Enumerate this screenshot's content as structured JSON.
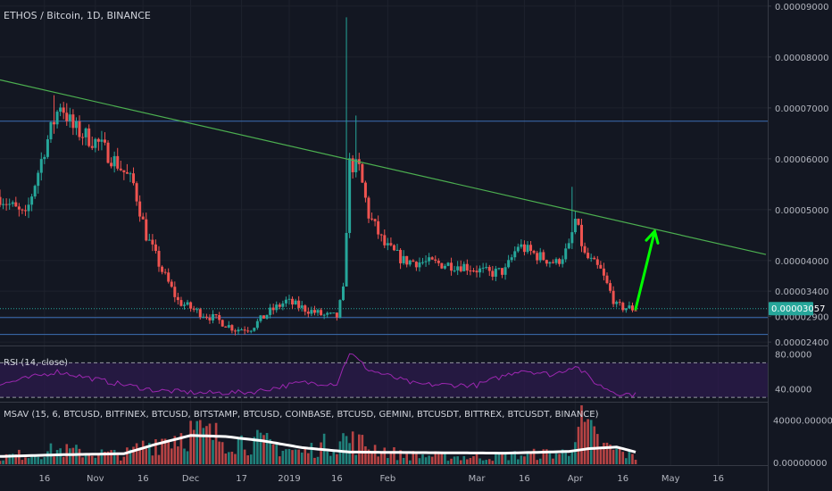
{
  "header": {
    "title": "ETHOS / Bitcoin, 1D, BINANCE",
    "rsi_label": "RSI (14, close)",
    "msav_label": "MSAV (15, 6, BTCUSD, BITFINEX, BTCUSD, BITSTAMP, BTCUSD, COINBASE, BTCUSD, GEMINI, BTCUSDT, BITTREX, BTCUSDT, BINANCE)"
  },
  "colors": {
    "background": "#131722",
    "up": "#26a69a",
    "down": "#ef5350",
    "trendline": "#4caf50",
    "arrow": "#00ff00",
    "rsi_line": "#9c27b0",
    "rsi_band": "#2a1a4a",
    "hline": "#3d6fb5",
    "last_price_bg": "#26a69a",
    "volume_ma": "#ffffff"
  },
  "chart_data": [
    {
      "type": "candlestick",
      "title": "ETHOS / Bitcoin, 1D, BINANCE",
      "x_ticks": [
        "16",
        "Nov",
        "16",
        "Dec",
        "17",
        "2019",
        "16",
        "Feb",
        "Mar",
        "16",
        "Apr",
        "16",
        "May",
        "16"
      ],
      "y_ticks": [
        "0.00009000",
        "0.00008000",
        "0.00007000",
        "0.00006000",
        "0.00005000",
        "0.00004000",
        "0.00003400",
        "0.00002900",
        "0.00002400"
      ],
      "last_price": "0.00003057",
      "last_price_value": 3.057e-05,
      "ylim": [
        2.35e-05,
        9.12e-05
      ],
      "date_range": [
        "2018-10-02",
        "2019-05-31"
      ],
      "horizontal_lines": [
        6.74e-05,
        2.88e-05,
        2.55e-05
      ],
      "trendline": [
        {
          "date": "2018-10-02",
          "value": 7.55e-05
        },
        {
          "date": "2019-05-31",
          "value": 4.12e-05
        }
      ],
      "arrow": [
        {
          "date": "2019-04-20",
          "value": 3.05e-05
        },
        {
          "date": "2019-04-26",
          "value": 4.58e-05
        }
      ],
      "anchors": [
        [
          "2018-10-02",
          5.25e-05
        ],
        [
          "2018-10-10",
          4.85e-05
        ],
        [
          "2018-10-16",
          6.2e-05
        ],
        [
          "2018-10-21",
          7.1e-05
        ],
        [
          "2018-10-25",
          6.6e-05
        ],
        [
          "2018-11-02",
          6.3e-05
        ],
        [
          "2018-11-08",
          5.9e-05
        ],
        [
          "2018-11-13",
          5.5e-05
        ],
        [
          "2018-11-17",
          4.5e-05
        ],
        [
          "2018-11-22",
          3.8e-05
        ],
        [
          "2018-11-27",
          3.2e-05
        ],
        [
          "2018-12-03",
          3e-05
        ],
        [
          "2018-12-09",
          2.85e-05
        ],
        [
          "2018-12-15",
          2.65e-05
        ],
        [
          "2018-12-20",
          2.68e-05
        ],
        [
          "2018-12-26",
          3e-05
        ],
        [
          "2018-12-31",
          3.2e-05
        ],
        [
          "2019-01-06",
          3.05e-05
        ],
        [
          "2019-01-12",
          2.92e-05
        ],
        [
          "2019-01-16",
          2.9e-05
        ],
        [
          "2019-01-18",
          3.4e-05
        ],
        [
          "2019-01-20",
          5.9e-05
        ],
        [
          "2019-01-23",
          5.8e-05
        ],
        [
          "2019-01-26",
          4.9e-05
        ],
        [
          "2019-01-31",
          4.3e-05
        ],
        [
          "2019-02-06",
          4e-05
        ],
        [
          "2019-02-15",
          3.95e-05
        ],
        [
          "2019-02-25",
          3.9e-05
        ],
        [
          "2019-03-05",
          3.75e-05
        ],
        [
          "2019-03-10",
          3.8e-05
        ],
        [
          "2019-03-14",
          4.3e-05
        ],
        [
          "2019-03-20",
          4.1e-05
        ],
        [
          "2019-03-26",
          3.95e-05
        ],
        [
          "2019-03-30",
          4.25e-05
        ],
        [
          "2019-04-01",
          4.8e-05
        ],
        [
          "2019-04-04",
          4.1e-05
        ],
        [
          "2019-04-09",
          3.8e-05
        ],
        [
          "2019-04-14",
          3.1e-05
        ],
        [
          "2019-04-20",
          3.05e-05
        ]
      ],
      "spikes": [
        {
          "date": "2018-10-19",
          "high": 7.25e-05
        },
        {
          "date": "2019-01-19",
          "high": 8.78e-05
        },
        {
          "date": "2019-01-22",
          "high": 6.85e-05
        },
        {
          "date": "2019-03-31",
          "high": 5.45e-05
        }
      ]
    },
    {
      "type": "line",
      "title": "RSI (14, close)",
      "y_ticks": [
        "80.0000",
        "40.0000"
      ],
      "ylim": [
        26,
        88
      ],
      "band": [
        30,
        70
      ],
      "anchors": [
        [
          "2018-10-02",
          45
        ],
        [
          "2018-10-20",
          60
        ],
        [
          "2018-11-05",
          48
        ],
        [
          "2018-11-20",
          38
        ],
        [
          "2018-12-05",
          35
        ],
        [
          "2018-12-20",
          36
        ],
        [
          "2019-01-05",
          47
        ],
        [
          "2019-01-16",
          46
        ],
        [
          "2019-01-20",
          82
        ],
        [
          "2019-01-26",
          62
        ],
        [
          "2019-02-10",
          45
        ],
        [
          "2019-03-01",
          44
        ],
        [
          "2019-03-15",
          62
        ],
        [
          "2019-03-25",
          56
        ],
        [
          "2019-04-01",
          67
        ],
        [
          "2019-04-08",
          45
        ],
        [
          "2019-04-14",
          35
        ],
        [
          "2019-04-20",
          33
        ]
      ]
    },
    {
      "type": "bar",
      "title": "MSAV (15, 6, BTCUSD, BITFINEX, BTCUSD, BITSTAMP, BTCUSD, COINBASE, BTCUSD, GEMINI, BTCUSDT, BITTREX, BTCUSDT, BINANCE)",
      "y_ticks": [
        "40000.00000000",
        "0.00000000"
      ],
      "ylim": [
        0,
        50000
      ],
      "ma_anchors": [
        [
          "2018-10-02",
          7000
        ],
        [
          "2018-10-20",
          8500
        ],
        [
          "2018-11-10",
          9500
        ],
        [
          "2018-11-20",
          18000
        ],
        [
          "2018-12-01",
          26000
        ],
        [
          "2018-12-12",
          25000
        ],
        [
          "2018-12-24",
          21000
        ],
        [
          "2019-01-05",
          15000
        ],
        [
          "2019-01-20",
          11000
        ],
        [
          "2019-02-10",
          10500
        ],
        [
          "2019-03-10",
          10000
        ],
        [
          "2019-03-30",
          11500
        ],
        [
          "2019-04-05",
          14000
        ],
        [
          "2019-04-14",
          15500
        ],
        [
          "2019-04-20",
          11000
        ]
      ],
      "bar_anchors": [
        [
          "2018-10-02",
          6000
        ],
        [
          "2018-10-20",
          12000
        ],
        [
          "2018-11-10",
          8000
        ],
        [
          "2018-11-20",
          20000
        ],
        [
          "2018-12-01",
          28000
        ],
        [
          "2018-12-12",
          22000
        ],
        [
          "2018-12-24",
          18000
        ],
        [
          "2019-01-05",
          10000
        ],
        [
          "2019-01-18",
          22000
        ],
        [
          "2019-02-05",
          8000
        ],
        [
          "2019-03-01",
          6000
        ],
        [
          "2019-03-30",
          10000
        ],
        [
          "2019-04-01",
          38000
        ],
        [
          "2019-04-10",
          15000
        ],
        [
          "2019-04-20",
          6000
        ]
      ]
    }
  ]
}
